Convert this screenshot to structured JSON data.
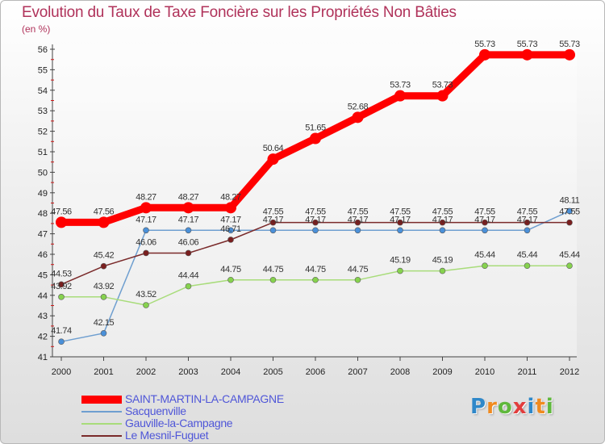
{
  "title": "Evolution du Taux de Taxe Foncière sur les Propriétés Non Bâties",
  "unit_label": "(en %)",
  "logo": {
    "letters": [
      "P",
      "r",
      "o",
      "x",
      "i",
      "t",
      "i"
    ],
    "colors": [
      "#2f88c9",
      "#f08a1f",
      "#5fb83c",
      "#e23d3d",
      "#2f88c9",
      "#f08a1f",
      "#5fb83c"
    ]
  },
  "chart_data": {
    "type": "line",
    "title": "Evolution du Taux de Taxe Foncière sur les Propriétés Non Bâties",
    "ylabel": "(en %)",
    "x": [
      "2000",
      "2001",
      "2002",
      "2003",
      "2004",
      "2005",
      "2006",
      "2007",
      "2008",
      "2009",
      "2010",
      "2011",
      "2012"
    ],
    "ylim": [
      41,
      56
    ],
    "yticks": [
      41,
      42,
      43,
      44,
      45,
      46,
      47,
      48,
      49,
      50,
      51,
      52,
      53,
      54,
      55,
      56
    ],
    "series": [
      {
        "name": "SAINT-MARTIN-LA-CAMPAGNE",
        "color": "#ff0000",
        "marker": "#ff0000",
        "values": [
          47.56,
          47.56,
          48.27,
          48.27,
          48.27,
          50.64,
          51.65,
          52.68,
          53.73,
          53.73,
          55.73,
          55.73,
          55.73
        ],
        "labels": [
          "47.56",
          "47.56",
          "48.27",
          "48.27",
          "48.27",
          "50.64",
          "51.65",
          "52.68",
          "53.73",
          "53.73",
          "55.73",
          "55.73",
          "55.73"
        ]
      },
      {
        "name": "Sacquenville",
        "color": "#6f9fd0",
        "marker": "#4a90d9",
        "values": [
          41.74,
          42.15,
          47.17,
          47.17,
          47.17,
          47.17,
          47.17,
          47.17,
          47.17,
          47.17,
          47.17,
          47.17,
          48.11
        ],
        "labels": [
          "41.74",
          "42.15",
          "47.17",
          "47.17",
          "47.17",
          "47.17",
          "47.17",
          "47.17",
          "47.17",
          "47.17",
          "47.17",
          "47.17",
          "48.11"
        ]
      },
      {
        "name": "Gauville-la-Campagne",
        "color": "#a8dc7a",
        "marker": "#86d24e",
        "values": [
          43.92,
          43.92,
          43.52,
          44.44,
          44.75,
          44.75,
          44.75,
          44.75,
          45.19,
          45.19,
          45.44,
          45.44,
          45.44
        ],
        "labels": [
          "43.92",
          "43.92",
          "43.52",
          "44.44",
          "44.75",
          "44.75",
          "44.75",
          "44.75",
          "45.19",
          "45.19",
          "45.44",
          "45.44",
          "45.44"
        ]
      },
      {
        "name": "Le Mesnil-Fuguet",
        "color": "#7a2a2a",
        "marker": "#7a1f1f",
        "values": [
          44.53,
          45.42,
          46.06,
          46.06,
          46.71,
          47.55,
          47.55,
          47.55,
          47.55,
          47.55,
          47.55,
          47.55,
          47.55
        ],
        "labels": [
          "44.53",
          "45.42",
          "46.06",
          "46.06",
          "46.71",
          "47.55",
          "47.55",
          "47.55",
          "47.55",
          "47.55",
          "47.55",
          "47.55",
          "47.55"
        ]
      }
    ]
  }
}
